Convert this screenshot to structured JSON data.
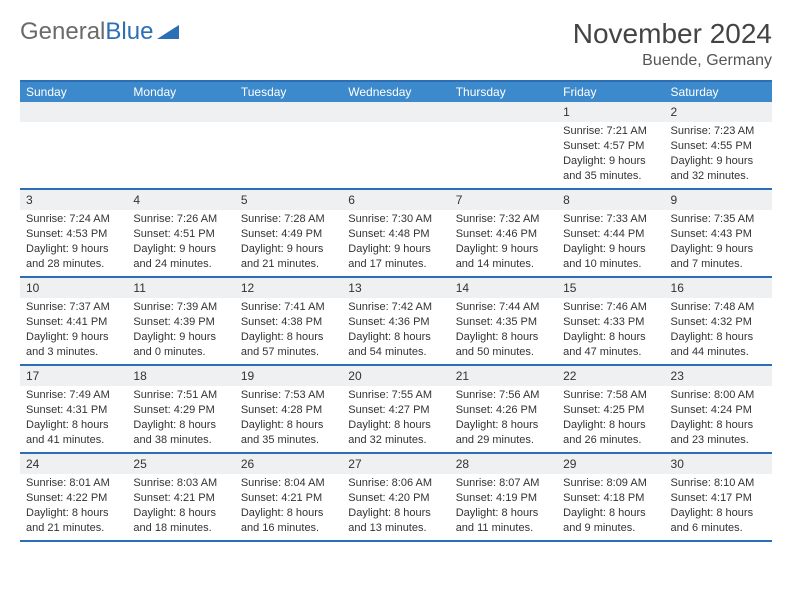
{
  "brand": {
    "part1": "General",
    "part2": "Blue"
  },
  "title": "November 2024",
  "location": "Buende, Germany",
  "colors": {
    "header_bg": "#3c8acb",
    "rule": "#2d6fb5",
    "daynum_bg": "#eef0f1",
    "text": "#333333",
    "brand_gray": "#6a6a6a",
    "brand_blue": "#2d6fb5"
  },
  "dow": [
    "Sunday",
    "Monday",
    "Tuesday",
    "Wednesday",
    "Thursday",
    "Friday",
    "Saturday"
  ],
  "weeks": [
    [
      {
        "n": "",
        "sr": "",
        "ss": "",
        "dl": ""
      },
      {
        "n": "",
        "sr": "",
        "ss": "",
        "dl": ""
      },
      {
        "n": "",
        "sr": "",
        "ss": "",
        "dl": ""
      },
      {
        "n": "",
        "sr": "",
        "ss": "",
        "dl": ""
      },
      {
        "n": "",
        "sr": "",
        "ss": "",
        "dl": ""
      },
      {
        "n": "1",
        "sr": "Sunrise: 7:21 AM",
        "ss": "Sunset: 4:57 PM",
        "dl": "Daylight: 9 hours and 35 minutes."
      },
      {
        "n": "2",
        "sr": "Sunrise: 7:23 AM",
        "ss": "Sunset: 4:55 PM",
        "dl": "Daylight: 9 hours and 32 minutes."
      }
    ],
    [
      {
        "n": "3",
        "sr": "Sunrise: 7:24 AM",
        "ss": "Sunset: 4:53 PM",
        "dl": "Daylight: 9 hours and 28 minutes."
      },
      {
        "n": "4",
        "sr": "Sunrise: 7:26 AM",
        "ss": "Sunset: 4:51 PM",
        "dl": "Daylight: 9 hours and 24 minutes."
      },
      {
        "n": "5",
        "sr": "Sunrise: 7:28 AM",
        "ss": "Sunset: 4:49 PM",
        "dl": "Daylight: 9 hours and 21 minutes."
      },
      {
        "n": "6",
        "sr": "Sunrise: 7:30 AM",
        "ss": "Sunset: 4:48 PM",
        "dl": "Daylight: 9 hours and 17 minutes."
      },
      {
        "n": "7",
        "sr": "Sunrise: 7:32 AM",
        "ss": "Sunset: 4:46 PM",
        "dl": "Daylight: 9 hours and 14 minutes."
      },
      {
        "n": "8",
        "sr": "Sunrise: 7:33 AM",
        "ss": "Sunset: 4:44 PM",
        "dl": "Daylight: 9 hours and 10 minutes."
      },
      {
        "n": "9",
        "sr": "Sunrise: 7:35 AM",
        "ss": "Sunset: 4:43 PM",
        "dl": "Daylight: 9 hours and 7 minutes."
      }
    ],
    [
      {
        "n": "10",
        "sr": "Sunrise: 7:37 AM",
        "ss": "Sunset: 4:41 PM",
        "dl": "Daylight: 9 hours and 3 minutes."
      },
      {
        "n": "11",
        "sr": "Sunrise: 7:39 AM",
        "ss": "Sunset: 4:39 PM",
        "dl": "Daylight: 9 hours and 0 minutes."
      },
      {
        "n": "12",
        "sr": "Sunrise: 7:41 AM",
        "ss": "Sunset: 4:38 PM",
        "dl": "Daylight: 8 hours and 57 minutes."
      },
      {
        "n": "13",
        "sr": "Sunrise: 7:42 AM",
        "ss": "Sunset: 4:36 PM",
        "dl": "Daylight: 8 hours and 54 minutes."
      },
      {
        "n": "14",
        "sr": "Sunrise: 7:44 AM",
        "ss": "Sunset: 4:35 PM",
        "dl": "Daylight: 8 hours and 50 minutes."
      },
      {
        "n": "15",
        "sr": "Sunrise: 7:46 AM",
        "ss": "Sunset: 4:33 PM",
        "dl": "Daylight: 8 hours and 47 minutes."
      },
      {
        "n": "16",
        "sr": "Sunrise: 7:48 AM",
        "ss": "Sunset: 4:32 PM",
        "dl": "Daylight: 8 hours and 44 minutes."
      }
    ],
    [
      {
        "n": "17",
        "sr": "Sunrise: 7:49 AM",
        "ss": "Sunset: 4:31 PM",
        "dl": "Daylight: 8 hours and 41 minutes."
      },
      {
        "n": "18",
        "sr": "Sunrise: 7:51 AM",
        "ss": "Sunset: 4:29 PM",
        "dl": "Daylight: 8 hours and 38 minutes."
      },
      {
        "n": "19",
        "sr": "Sunrise: 7:53 AM",
        "ss": "Sunset: 4:28 PM",
        "dl": "Daylight: 8 hours and 35 minutes."
      },
      {
        "n": "20",
        "sr": "Sunrise: 7:55 AM",
        "ss": "Sunset: 4:27 PM",
        "dl": "Daylight: 8 hours and 32 minutes."
      },
      {
        "n": "21",
        "sr": "Sunrise: 7:56 AM",
        "ss": "Sunset: 4:26 PM",
        "dl": "Daylight: 8 hours and 29 minutes."
      },
      {
        "n": "22",
        "sr": "Sunrise: 7:58 AM",
        "ss": "Sunset: 4:25 PM",
        "dl": "Daylight: 8 hours and 26 minutes."
      },
      {
        "n": "23",
        "sr": "Sunrise: 8:00 AM",
        "ss": "Sunset: 4:24 PM",
        "dl": "Daylight: 8 hours and 23 minutes."
      }
    ],
    [
      {
        "n": "24",
        "sr": "Sunrise: 8:01 AM",
        "ss": "Sunset: 4:22 PM",
        "dl": "Daylight: 8 hours and 21 minutes."
      },
      {
        "n": "25",
        "sr": "Sunrise: 8:03 AM",
        "ss": "Sunset: 4:21 PM",
        "dl": "Daylight: 8 hours and 18 minutes."
      },
      {
        "n": "26",
        "sr": "Sunrise: 8:04 AM",
        "ss": "Sunset: 4:21 PM",
        "dl": "Daylight: 8 hours and 16 minutes."
      },
      {
        "n": "27",
        "sr": "Sunrise: 8:06 AM",
        "ss": "Sunset: 4:20 PM",
        "dl": "Daylight: 8 hours and 13 minutes."
      },
      {
        "n": "28",
        "sr": "Sunrise: 8:07 AM",
        "ss": "Sunset: 4:19 PM",
        "dl": "Daylight: 8 hours and 11 minutes."
      },
      {
        "n": "29",
        "sr": "Sunrise: 8:09 AM",
        "ss": "Sunset: 4:18 PM",
        "dl": "Daylight: 8 hours and 9 minutes."
      },
      {
        "n": "30",
        "sr": "Sunrise: 8:10 AM",
        "ss": "Sunset: 4:17 PM",
        "dl": "Daylight: 8 hours and 6 minutes."
      }
    ]
  ]
}
